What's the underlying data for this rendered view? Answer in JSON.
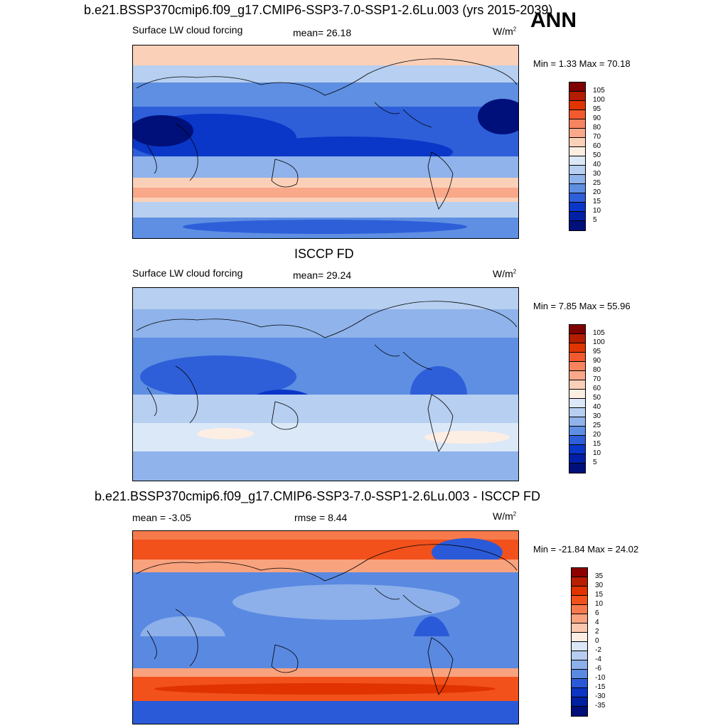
{
  "header": {
    "main_title": "b.e21.BSSP370cmip6.f09_g17.CMIP6-SSP3-7.0-SSP1-2.6Lu.003 (yrs 2015-2039)",
    "season": "ANN"
  },
  "panels": [
    {
      "id": "model",
      "section_title": "",
      "left_label": "Surface LW cloud forcing",
      "center_label": "mean=  26.18",
      "units": "W/m",
      "units_sup": "2",
      "minmax": "Min =   1.33 Max =  70.18",
      "colorbar_labels": [
        "105",
        "100",
        "95",
        "90",
        "80",
        "70",
        "60",
        "50",
        "40",
        "30",
        "25",
        "20",
        "15",
        "10",
        "5"
      ],
      "colorbar_colors": [
        "#7f0000",
        "#b31d00",
        "#e03500",
        "#f25a2e",
        "#f7845f",
        "#f9a88a",
        "#fbd0b8",
        "#fdeee3",
        "#dbe8f8",
        "#b7cff0",
        "#8fb3ea",
        "#5e8fe2",
        "#2e5fd9",
        "#0a37c8",
        "#0020a6",
        "#00107a"
      ],
      "map_colors": {
        "ocean_low": "#0a3fd1",
        "ocean_mid": "#2f66e0",
        "ocean_hi": "#a9c6f1",
        "land": "#5d8ee8",
        "warm": "#f8c7b0"
      }
    },
    {
      "id": "obs",
      "section_title": "ISCCP FD",
      "left_label": "Surface LW cloud forcing",
      "center_label": "mean=  29.24",
      "units": "W/m",
      "units_sup": "2",
      "minmax": "Min =   7.85 Max =  55.96",
      "colorbar_labels": [
        "105",
        "100",
        "95",
        "90",
        "80",
        "70",
        "60",
        "50",
        "40",
        "30",
        "25",
        "20",
        "15",
        "10",
        "5"
      ],
      "colorbar_colors": [
        "#7f0000",
        "#b31d00",
        "#e03500",
        "#f25a2e",
        "#f7845f",
        "#f9a88a",
        "#fbd0b8",
        "#fdeee3",
        "#dbe8f8",
        "#b7cff0",
        "#8fb3ea",
        "#5e8fe2",
        "#2e5fd9",
        "#0a37c8",
        "#0020a6",
        "#00107a"
      ],
      "map_colors": {
        "ocean_low": "#1f54da",
        "ocean_mid": "#6f9ae6",
        "ocean_hi": "#c6daf6",
        "land": "#4f81e3",
        "warm": "#fbdcc9"
      }
    },
    {
      "id": "diff",
      "section_title": "b.e21.BSSP370cmip6.f09_g17.CMIP6-SSP3-7.0-SSP1-2.6Lu.003 - ISCCP FD",
      "left_label": "mean =  -3.05",
      "center_label": "rmse =   8.44",
      "units": "W/m",
      "units_sup": "2",
      "minmax": "Min = -21.84 Max =  24.02",
      "colorbar_labels": [
        "35",
        "30",
        "15",
        "10",
        "6",
        "4",
        "2",
        "0",
        "-2",
        "-4",
        "-6",
        "-10",
        "-15",
        "-30",
        "-35"
      ],
      "colorbar_colors": [
        "#8c0000",
        "#b81f00",
        "#e03300",
        "#f2511c",
        "#f77a4c",
        "#f9a27e",
        "#fbc7ae",
        "#fdeee4",
        "#dbe6f8",
        "#b7cdf0",
        "#8db0ea",
        "#5a89e2",
        "#2b5ad8",
        "#0c35c4",
        "#0020a2",
        "#000f78"
      ],
      "map_colors": {
        "ocean_low": "#2d5fdc",
        "ocean_mid": "#6f97e6",
        "ocean_hi": "#b9d0f2",
        "land": "#7aa2ea",
        "warm": "#f0602c"
      }
    }
  ]
}
